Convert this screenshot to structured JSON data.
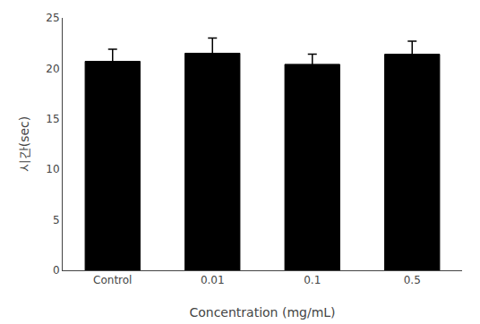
{
  "chart_data": {
    "type": "bar",
    "categories": [
      "Control",
      "0.01",
      "0.1",
      "0.5"
    ],
    "values": [
      20.7,
      21.5,
      20.4,
      21.4
    ],
    "errors": [
      1.2,
      1.5,
      1.0,
      1.3
    ],
    "color": "#000000",
    "xlabel": "Concentration (mg/mL)",
    "ylabel": "시간(sec)",
    "ylim": [
      0,
      25
    ],
    "yticks": [
      0,
      5,
      10,
      15,
      20,
      25
    ],
    "grid": false
  }
}
